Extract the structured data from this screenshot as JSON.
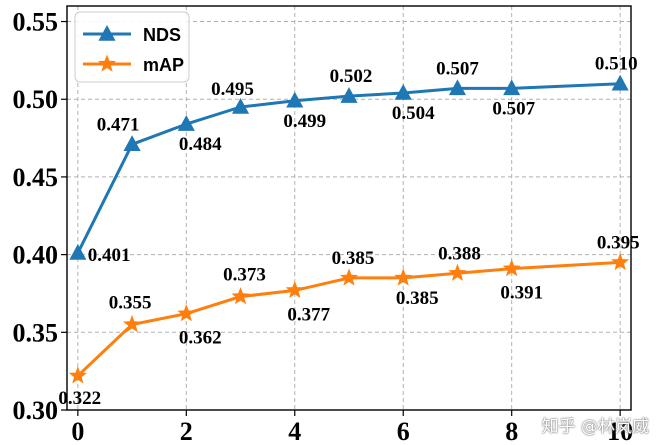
{
  "chart_data": {
    "type": "line",
    "title": "",
    "xlabel": "",
    "ylabel": "",
    "x": [
      0,
      1,
      2,
      3,
      4,
      5,
      6,
      7,
      8,
      10
    ],
    "xticks": [
      "0",
      "2",
      "4",
      "6",
      "8",
      "10"
    ],
    "xlim": [
      -0.2,
      10.2
    ],
    "ylim": [
      0.3,
      0.56
    ],
    "yticks": [
      "0.30",
      "0.35",
      "0.40",
      "0.45",
      "0.50",
      "0.55"
    ],
    "grid": true,
    "legend_position": "top-left",
    "series": [
      {
        "name": "NDS",
        "color": "#1f77b4",
        "marker": "triangle",
        "values": [
          0.401,
          0.471,
          0.484,
          0.495,
          0.499,
          0.502,
          0.504,
          0.507,
          0.507,
          0.51
        ],
        "labels": [
          "0.401",
          "0.471",
          "0.484",
          "0.495",
          "0.499",
          "0.502",
          "0.504",
          "0.507",
          "0.507",
          "0.510"
        ]
      },
      {
        "name": "mAP",
        "color": "#ff7f0e",
        "marker": "star",
        "values": [
          0.322,
          0.355,
          0.362,
          0.373,
          0.377,
          0.385,
          0.385,
          0.388,
          0.391,
          0.395
        ],
        "labels": [
          "0.322",
          "0.355",
          "0.362",
          "0.373",
          "0.377",
          "0.385",
          "0.385",
          "0.388",
          "0.391",
          "0.395"
        ]
      }
    ]
  },
  "watermark": "知乎 @林岚威"
}
